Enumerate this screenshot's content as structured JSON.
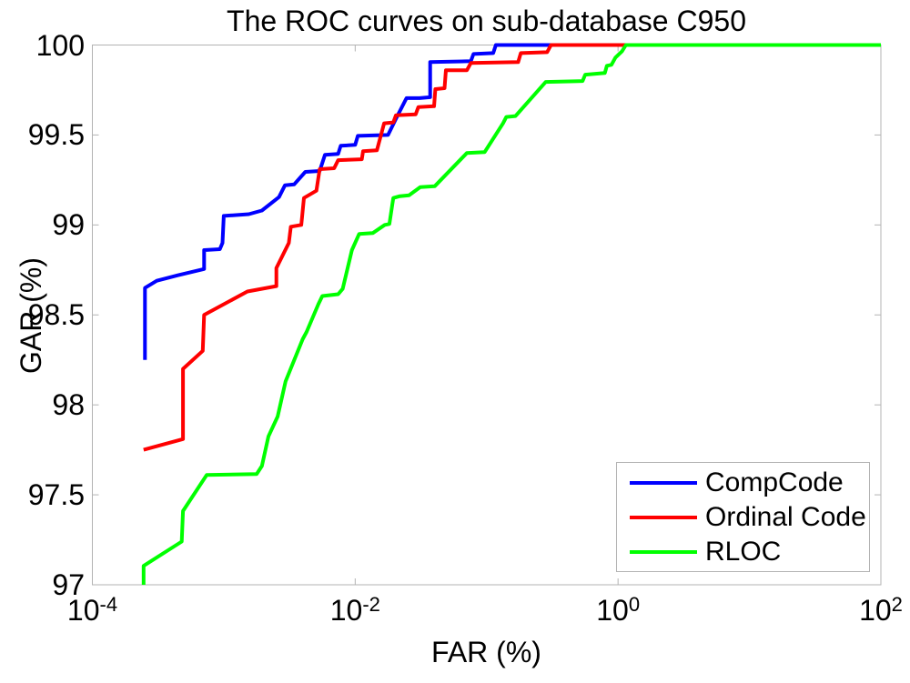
{
  "title": "The ROC curves on sub-database C950",
  "axes": {
    "xlabel": "FAR (%)",
    "ylabel": "GAR (%)",
    "x_ticks": [
      {
        "base": "10",
        "exp": "-4",
        "log10": -4
      },
      {
        "base": "10",
        "exp": "-2",
        "log10": -2
      },
      {
        "base": "10",
        "exp": "0",
        "log10": 0
      },
      {
        "base": "10",
        "exp": "2",
        "log10": 2
      }
    ],
    "y_ticks": [
      {
        "label": "97",
        "value": 97
      },
      {
        "label": "97.5",
        "value": 97.5
      },
      {
        "label": "98",
        "value": 98
      },
      {
        "label": "98.5",
        "value": 98.5
      },
      {
        "label": "99",
        "value": 99
      },
      {
        "label": "99.5",
        "value": 99.5
      },
      {
        "label": "100",
        "value": 100
      }
    ]
  },
  "legend": [
    {
      "label": "CompCode",
      "color": "#0000ff"
    },
    {
      "label": "Ordinal Code",
      "color": "#ff0000"
    },
    {
      "label": "RLOC",
      "color": "#00ff00"
    }
  ],
  "colors": {
    "axis_box": "#b3b3b3",
    "text": "#000000",
    "background": "#ffffff",
    "compcode": "#0000ff",
    "ordinal_code": "#ff0000",
    "rloc": "#00ff00"
  },
  "chart_data": {
    "type": "line",
    "title": "The ROC curves on sub-database C950",
    "xlabel": "FAR (%)",
    "ylabel": "GAR (%)",
    "x_scale": "log10",
    "xlim_log10": [
      -4,
      2
    ],
    "ylim": [
      97,
      100
    ],
    "grid": false,
    "legend_position": "lower right",
    "line_width": 4,
    "series": [
      {
        "name": "CompCode",
        "color": "#0000ff",
        "points_log10far_gar": [
          [
            -3.6,
            98.25
          ],
          [
            -3.6,
            98.65
          ],
          [
            -3.51,
            98.69
          ],
          [
            -3.35,
            98.72
          ],
          [
            -3.15,
            98.755
          ],
          [
            -3.15,
            98.86
          ],
          [
            -3.03,
            98.865
          ],
          [
            -3.01,
            98.9
          ],
          [
            -3.0,
            99.05
          ],
          [
            -2.81,
            99.06
          ],
          [
            -2.71,
            99.08
          ],
          [
            -2.58,
            99.155
          ],
          [
            -2.535,
            99.22
          ],
          [
            -2.465,
            99.225
          ],
          [
            -2.38,
            99.295
          ],
          [
            -2.27,
            99.3
          ],
          [
            -2.23,
            99.39
          ],
          [
            -2.13,
            99.395
          ],
          [
            -2.11,
            99.44
          ],
          [
            -2.0,
            99.445
          ],
          [
            -1.98,
            99.495
          ],
          [
            -1.75,
            99.5
          ],
          [
            -1.69,
            99.59
          ],
          [
            -1.61,
            99.705
          ],
          [
            -1.51,
            99.705
          ],
          [
            -1.43,
            99.71
          ],
          [
            -1.43,
            99.905
          ],
          [
            -1.12,
            99.91
          ],
          [
            -1.1,
            99.95
          ],
          [
            -0.95,
            99.955
          ],
          [
            -0.93,
            100
          ],
          [
            2,
            100
          ]
        ]
      },
      {
        "name": "Ordinal Code",
        "color": "#ff0000",
        "points_log10far_gar": [
          [
            -3.61,
            97.75
          ],
          [
            -3.31,
            97.81
          ],
          [
            -3.31,
            98.2
          ],
          [
            -3.16,
            98.3
          ],
          [
            -3.15,
            98.5
          ],
          [
            -2.82,
            98.63
          ],
          [
            -2.6,
            98.66
          ],
          [
            -2.6,
            98.76
          ],
          [
            -2.505,
            98.9
          ],
          [
            -2.49,
            98.99
          ],
          [
            -2.41,
            99.0
          ],
          [
            -2.39,
            99.15
          ],
          [
            -2.295,
            99.19
          ],
          [
            -2.27,
            99.31
          ],
          [
            -2.16,
            99.315
          ],
          [
            -2.13,
            99.36
          ],
          [
            -1.95,
            99.365
          ],
          [
            -1.94,
            99.41
          ],
          [
            -1.835,
            99.415
          ],
          [
            -1.78,
            99.565
          ],
          [
            -1.71,
            99.57
          ],
          [
            -1.69,
            99.61
          ],
          [
            -1.54,
            99.615
          ],
          [
            -1.52,
            99.655
          ],
          [
            -1.4,
            99.66
          ],
          [
            -1.39,
            99.755
          ],
          [
            -1.32,
            99.76
          ],
          [
            -1.31,
            99.86
          ],
          [
            -1.15,
            99.86
          ],
          [
            -1.12,
            99.9
          ],
          [
            -0.76,
            99.905
          ],
          [
            -0.74,
            99.955
          ],
          [
            -0.54,
            99.96
          ],
          [
            -0.51,
            100
          ],
          [
            2,
            100
          ]
        ]
      },
      {
        "name": "RLOC",
        "color": "#00ff00",
        "points_log10far_gar": [
          [
            -3.61,
            97.0
          ],
          [
            -3.61,
            97.105
          ],
          [
            -3.32,
            97.24
          ],
          [
            -3.31,
            97.41
          ],
          [
            -3.13,
            97.61
          ],
          [
            -2.75,
            97.615
          ],
          [
            -2.71,
            97.66
          ],
          [
            -2.66,
            97.825
          ],
          [
            -2.59,
            97.935
          ],
          [
            -2.53,
            98.13
          ],
          [
            -2.4,
            98.365
          ],
          [
            -2.37,
            98.405
          ],
          [
            -2.28,
            98.56
          ],
          [
            -2.25,
            98.605
          ],
          [
            -2.13,
            98.615
          ],
          [
            -2.095,
            98.645
          ],
          [
            -2.025,
            98.86
          ],
          [
            -1.97,
            98.95
          ],
          [
            -1.865,
            98.955
          ],
          [
            -1.775,
            99.0
          ],
          [
            -1.74,
            99.005
          ],
          [
            -1.71,
            99.15
          ],
          [
            -1.66,
            99.16
          ],
          [
            -1.59,
            99.165
          ],
          [
            -1.505,
            99.21
          ],
          [
            -1.395,
            99.215
          ],
          [
            -1.15,
            99.4
          ],
          [
            -1.015,
            99.405
          ],
          [
            -0.875,
            99.565
          ],
          [
            -0.85,
            99.6
          ],
          [
            -0.78,
            99.605
          ],
          [
            -0.55,
            99.795
          ],
          [
            -0.27,
            99.8
          ],
          [
            -0.25,
            99.835
          ],
          [
            -0.1,
            99.845
          ],
          [
            -0.085,
            99.885
          ],
          [
            -0.05,
            99.89
          ],
          [
            -0.02,
            99.93
          ],
          [
            0.03,
            99.965
          ],
          [
            0.06,
            100
          ],
          [
            2,
            100
          ]
        ]
      }
    ]
  }
}
